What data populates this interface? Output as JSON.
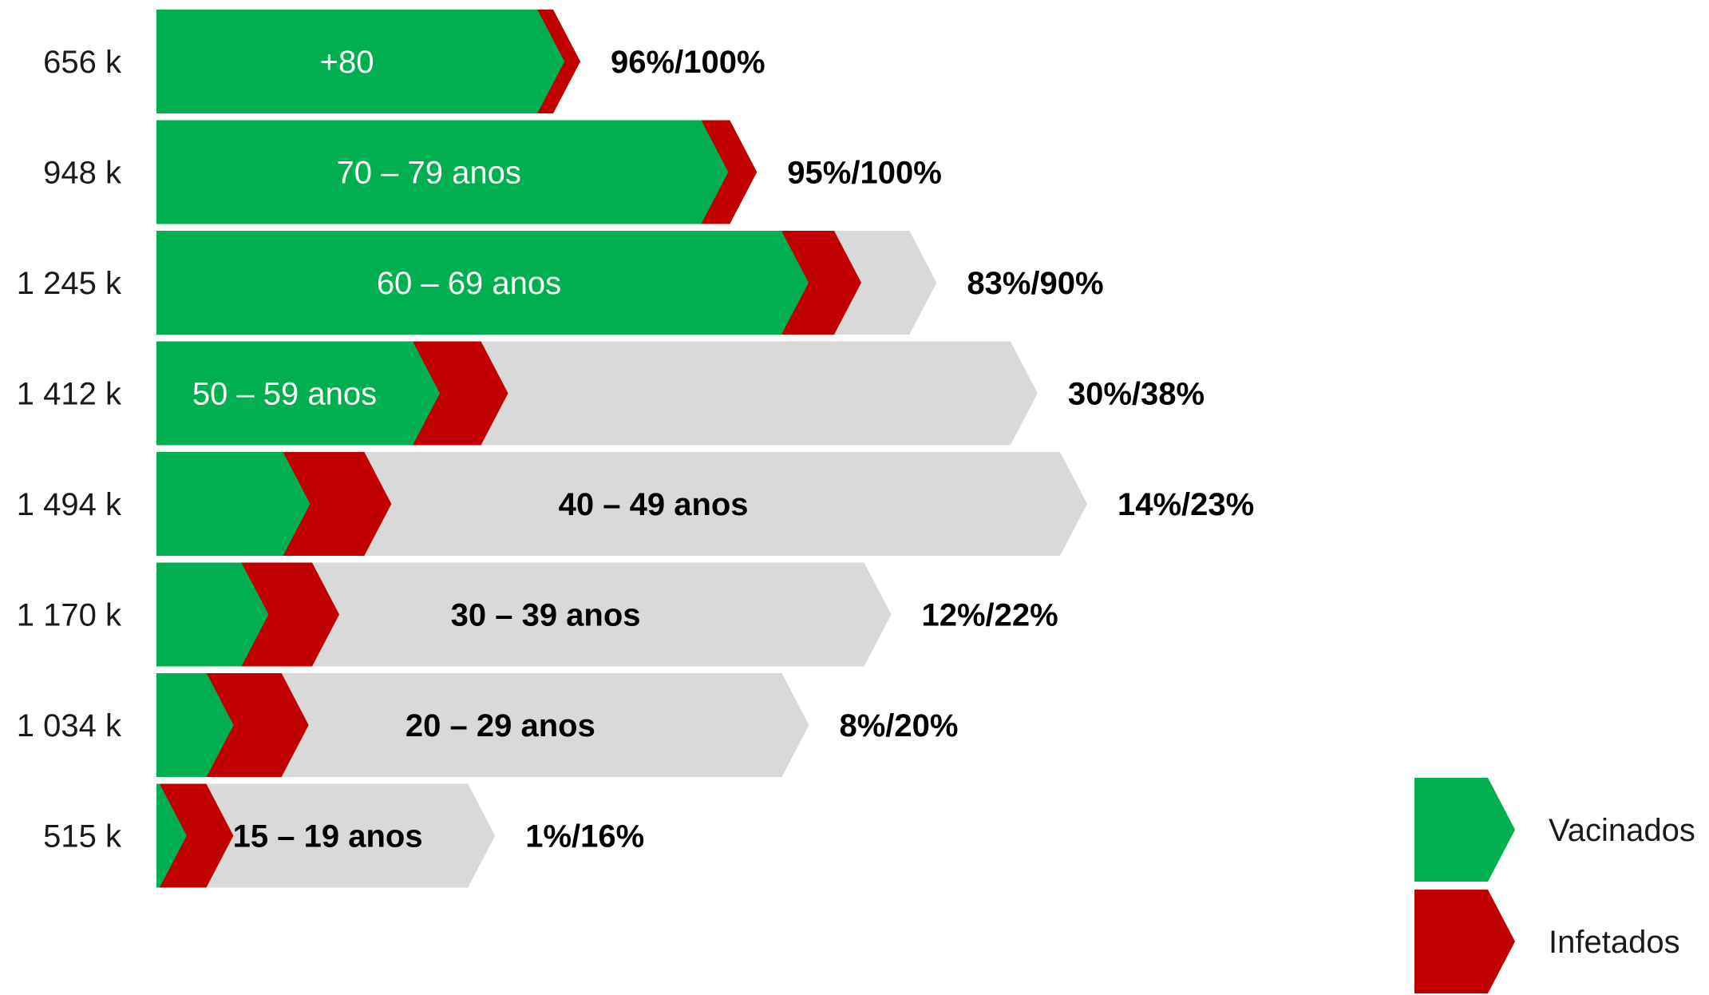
{
  "chart_data": {
    "type": "bar",
    "title": "",
    "xlabel": "",
    "ylabel": "",
    "series_names": [
      "Vacinados",
      "Infetados"
    ],
    "colors": {
      "vacinados": "#00B050",
      "infetados": "#C00000",
      "remaining": "#D9D9D9"
    },
    "rows": [
      {
        "population": "656 k",
        "population_k": 656,
        "age_group": "+80",
        "label": "96%/100%",
        "vacinados_pct": 96,
        "total_pct": 100
      },
      {
        "population": "948 k",
        "population_k": 948,
        "age_group": "70 – 79 anos",
        "label": "95%/100%",
        "vacinados_pct": 95,
        "total_pct": 100
      },
      {
        "population": "1 245 k",
        "population_k": 1245,
        "age_group": "60 – 69 anos",
        "label": "83%/90%",
        "vacinados_pct": 83,
        "total_pct": 90
      },
      {
        "population": "1 412 k",
        "population_k": 1412,
        "age_group": "50 – 59 anos",
        "label": "30%/38%",
        "vacinados_pct": 30,
        "total_pct": 38
      },
      {
        "population": "1 494 k",
        "population_k": 1494,
        "age_group": "40 – 49 anos",
        "label": "14%/23%",
        "vacinados_pct": 14,
        "total_pct": 23
      },
      {
        "population": "1 170 k",
        "population_k": 1170,
        "age_group": "30 – 39 anos",
        "label": "12%/22%",
        "vacinados_pct": 12,
        "total_pct": 22
      },
      {
        "population": "1 034 k",
        "population_k": 1034,
        "age_group": "20 – 29 anos",
        "label": "8%/20%",
        "vacinados_pct": 8,
        "total_pct": 20
      },
      {
        "population": "515 k",
        "population_k": 515,
        "age_group": "15 – 19 anos",
        "label": "1%/16%",
        "vacinados_pct": 1,
        "total_pct": 16
      }
    ],
    "legend": [
      {
        "name": "Vacinados",
        "color": "#00B050"
      },
      {
        "name": "Infetados",
        "color": "#C00000"
      }
    ],
    "legend_position": "bottom-right"
  }
}
